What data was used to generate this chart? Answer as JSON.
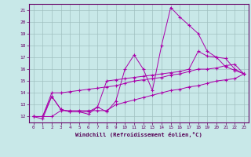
{
  "x": [
    0,
    1,
    2,
    3,
    4,
    5,
    6,
    7,
    8,
    9,
    10,
    11,
    12,
    13,
    14,
    15,
    16,
    17,
    18,
    19,
    20,
    21,
    22,
    23
  ],
  "line1": [
    12,
    11.8,
    13.7,
    12.6,
    12.4,
    12.4,
    12.2,
    12.8,
    12.4,
    13.3,
    16.0,
    17.2,
    16.0,
    14.2,
    18.0,
    21.2,
    20.4,
    19.7,
    19.0,
    17.5,
    17.0,
    16.2,
    15.9,
    15.6
  ],
  "line2": [
    12,
    12,
    13.7,
    12.6,
    12.4,
    12.4,
    12.4,
    12.8,
    15.0,
    15.1,
    15.2,
    15.3,
    15.4,
    15.5,
    15.6,
    15.7,
    15.8,
    16.0,
    17.5,
    17.1,
    17.0,
    16.9,
    16.0,
    15.6
  ],
  "line3": [
    12,
    12,
    14.0,
    14.0,
    14.1,
    14.2,
    14.3,
    14.4,
    14.5,
    14.6,
    14.8,
    15.0,
    15.1,
    15.2,
    15.3,
    15.5,
    15.6,
    15.8,
    16.0,
    16.0,
    16.1,
    16.3,
    16.4,
    15.6
  ],
  "line4": [
    12,
    12,
    12,
    12.5,
    12.5,
    12.5,
    12.5,
    12.5,
    12.5,
    13.0,
    13.2,
    13.4,
    13.6,
    13.8,
    14.0,
    14.2,
    14.3,
    14.5,
    14.6,
    14.8,
    15.0,
    15.1,
    15.2,
    15.6
  ],
  "line_color": "#aa00aa",
  "bg_color": "#c8e8e8",
  "grid_color": "#a0c0c0",
  "xlabel": "Windchill (Refroidissement éolien,°C)",
  "ylim": [
    11.5,
    21.5
  ],
  "xlim": [
    -0.5,
    23.5
  ],
  "yticks": [
    12,
    13,
    14,
    15,
    16,
    17,
    18,
    19,
    20,
    21
  ],
  "xticks": [
    0,
    1,
    2,
    3,
    4,
    5,
    6,
    7,
    8,
    9,
    10,
    11,
    12,
    13,
    14,
    15,
    16,
    17,
    18,
    19,
    20,
    21,
    22,
    23
  ]
}
